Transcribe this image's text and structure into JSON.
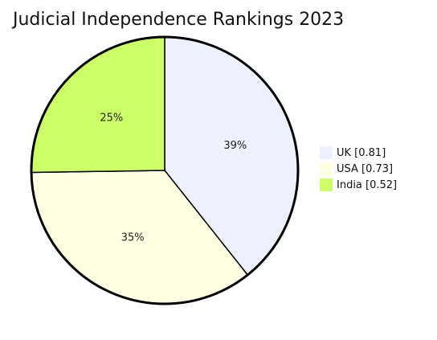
{
  "chart_data": {
    "type": "pie",
    "title": "Judicial Independence Rankings 2023",
    "slices": [
      {
        "label": "UK [0.81]",
        "value": 0.81,
        "percent_label": "39%",
        "color": "#eef0fd"
      },
      {
        "label": "USA [0.73]",
        "value": 0.73,
        "percent_label": "35%",
        "color": "#ffffe2"
      },
      {
        "label": "India [0.52]",
        "value": 0.52,
        "percent_label": "25%",
        "color": "#ccff66"
      }
    ],
    "legend_position": "right",
    "outline_color": "#000000"
  }
}
